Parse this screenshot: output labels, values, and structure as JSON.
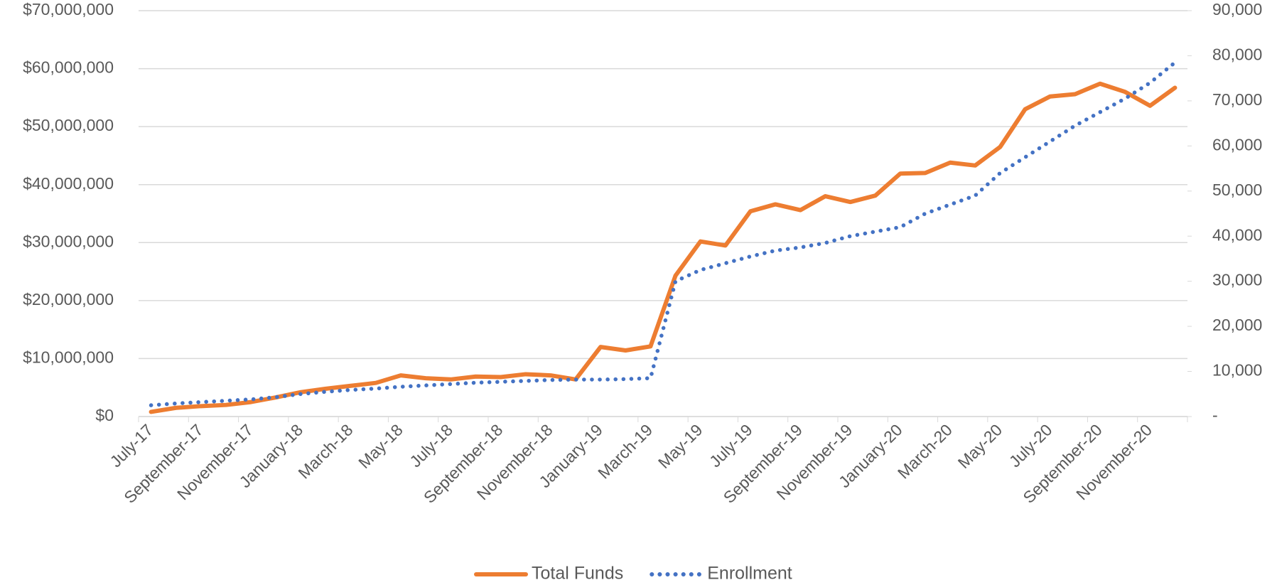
{
  "chart_data": {
    "type": "line",
    "categories": [
      "July-17",
      null,
      "September-17",
      null,
      "November-17",
      null,
      "January-18",
      null,
      "March-18",
      null,
      "May-18",
      null,
      "July-18",
      null,
      "September-18",
      null,
      "November-18",
      null,
      "January-19",
      null,
      "March-19",
      null,
      "May-19",
      null,
      "July-19",
      null,
      "September-19",
      null,
      "November-19",
      null,
      "January-20",
      null,
      "March-20",
      null,
      "May-20",
      null,
      "July-20",
      null,
      "September-20",
      null,
      "November-20",
      null
    ],
    "series": [
      {
        "name": "Total Funds",
        "color": "#ed7d31",
        "values": [
          800000,
          1500000,
          1800000,
          2000000,
          2500000,
          3300000,
          4200000,
          4800000,
          5300000,
          5800000,
          7100000,
          6600000,
          6400000,
          6900000,
          6800000,
          7300000,
          7100000,
          6400000,
          12000000,
          11400000,
          12100000,
          24300000,
          30200000,
          29500000,
          35400000,
          36600000,
          35600000,
          38000000,
          37000000,
          38100000,
          41900000,
          42000000,
          43800000,
          43300000,
          46500000,
          53000000,
          55200000,
          55600000,
          57400000,
          56000000,
          53600000,
          56700000
        ]
      },
      {
        "name": "Enrollment",
        "color": "#4472c4",
        "axis": "y2",
        "values": [
          2500,
          2900,
          3200,
          3500,
          3800,
          4300,
          5000,
          5500,
          5900,
          6200,
          6600,
          6900,
          7200,
          7500,
          7700,
          7900,
          8100,
          8200,
          8200,
          8300,
          8500,
          30000,
          32500,
          34000,
          35500,
          36800,
          37500,
          38500,
          40000,
          41000,
          42000,
          45000,
          47000,
          49000,
          54000,
          57500,
          61000,
          64500,
          67500,
          70500,
          74000,
          78500
        ]
      }
    ],
    "ylim": [
      0,
      70000000
    ],
    "yticks": [
      {
        "value": 0,
        "label": "$0"
      },
      {
        "value": 10000000,
        "label": "$10,000,000"
      },
      {
        "value": 20000000,
        "label": "$20,000,000"
      },
      {
        "value": 30000000,
        "label": "$30,000,000"
      },
      {
        "value": 40000000,
        "label": "$40,000,000"
      },
      {
        "value": 50000000,
        "label": "$50,000,000"
      },
      {
        "value": 60000000,
        "label": "$60,000,000"
      },
      {
        "value": 70000000,
        "label": "$70,000,000"
      }
    ],
    "y2lim": [
      0,
      90000
    ],
    "y2ticks": [
      {
        "value": 0,
        "label": "-"
      },
      {
        "value": 10000,
        "label": "10,000"
      },
      {
        "value": 20000,
        "label": "20,000"
      },
      {
        "value": 30000,
        "label": "30,000"
      },
      {
        "value": 40000,
        "label": "40,000"
      },
      {
        "value": 50000,
        "label": "50,000"
      },
      {
        "value": 60000,
        "label": "60,000"
      },
      {
        "value": 70000,
        "label": "70,000"
      },
      {
        "value": 80000,
        "label": "80,000"
      },
      {
        "value": 90000,
        "label": "90,000"
      }
    ],
    "grid": true,
    "legend": "bottom"
  }
}
